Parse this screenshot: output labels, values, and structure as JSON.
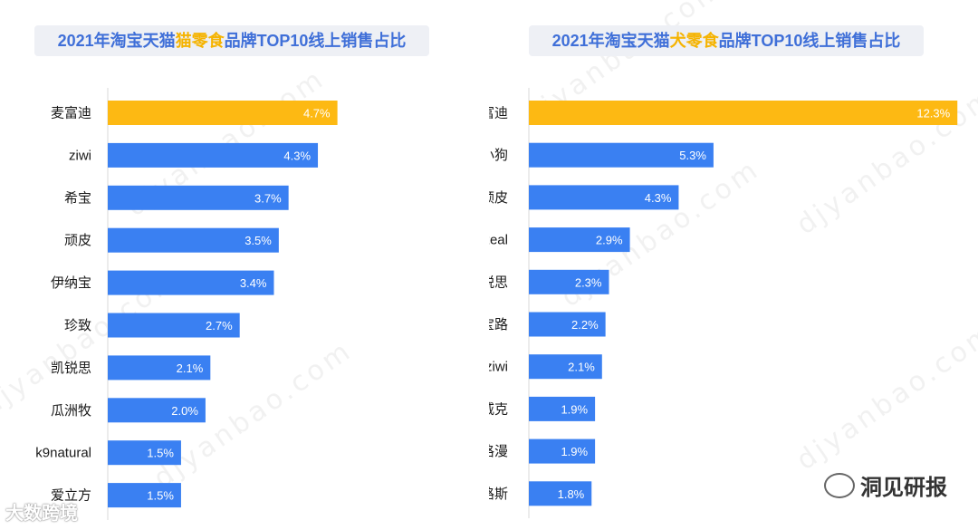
{
  "watermark": "djyanbao.com",
  "brand_right": "洞见研报",
  "brand_left": "大数跨境",
  "colors": {
    "highlight": "#fdb913",
    "bar": "#3a80f2"
  },
  "chart_data": [
    {
      "type": "bar",
      "orientation": "horizontal",
      "title_prefix": "2021年淘宝天猫",
      "title_highlight": "猫零食",
      "title_suffix": "品牌TOP10线上销售占比",
      "categories": [
        "麦富迪",
        "ziwi",
        "希宝",
        "顽皮",
        "伊纳宝",
        "珍致",
        "凯锐思",
        "瓜洲牧",
        "k9natural",
        "爱立方"
      ],
      "values": [
        4.7,
        4.3,
        3.7,
        3.5,
        3.4,
        2.7,
        2.1,
        2.0,
        1.5,
        1.5
      ],
      "labels": [
        "4.7%",
        "4.3%",
        "3.7%",
        "3.5%",
        "3.4%",
        "2.7%",
        "2.1%",
        "2.0%",
        "1.5%",
        "1.5%"
      ],
      "xlim": [
        0,
        5.3
      ]
    },
    {
      "type": "bar",
      "orientation": "horizontal",
      "title_prefix": "2021年淘宝天猫",
      "title_highlight": "犬零食",
      "title_suffix": "品牌TOP10线上销售占比",
      "categories": [
        "麦富迪",
        "疯狂小狗",
        "顽皮",
        "zeal",
        "凯锐思",
        "宝路",
        "ziwi",
        "耐威克",
        "多格漫",
        "路斯"
      ],
      "values": [
        12.3,
        5.3,
        4.3,
        2.9,
        2.3,
        2.2,
        2.1,
        1.9,
        1.9,
        1.8
      ],
      "labels": [
        "12.3%",
        "5.3%",
        "4.3%",
        "2.9%",
        "2.3%",
        "2.2%",
        "2.1%",
        "1.9%",
        "1.9%",
        "1.8%"
      ],
      "xlim": [
        0,
        12.45
      ]
    }
  ]
}
